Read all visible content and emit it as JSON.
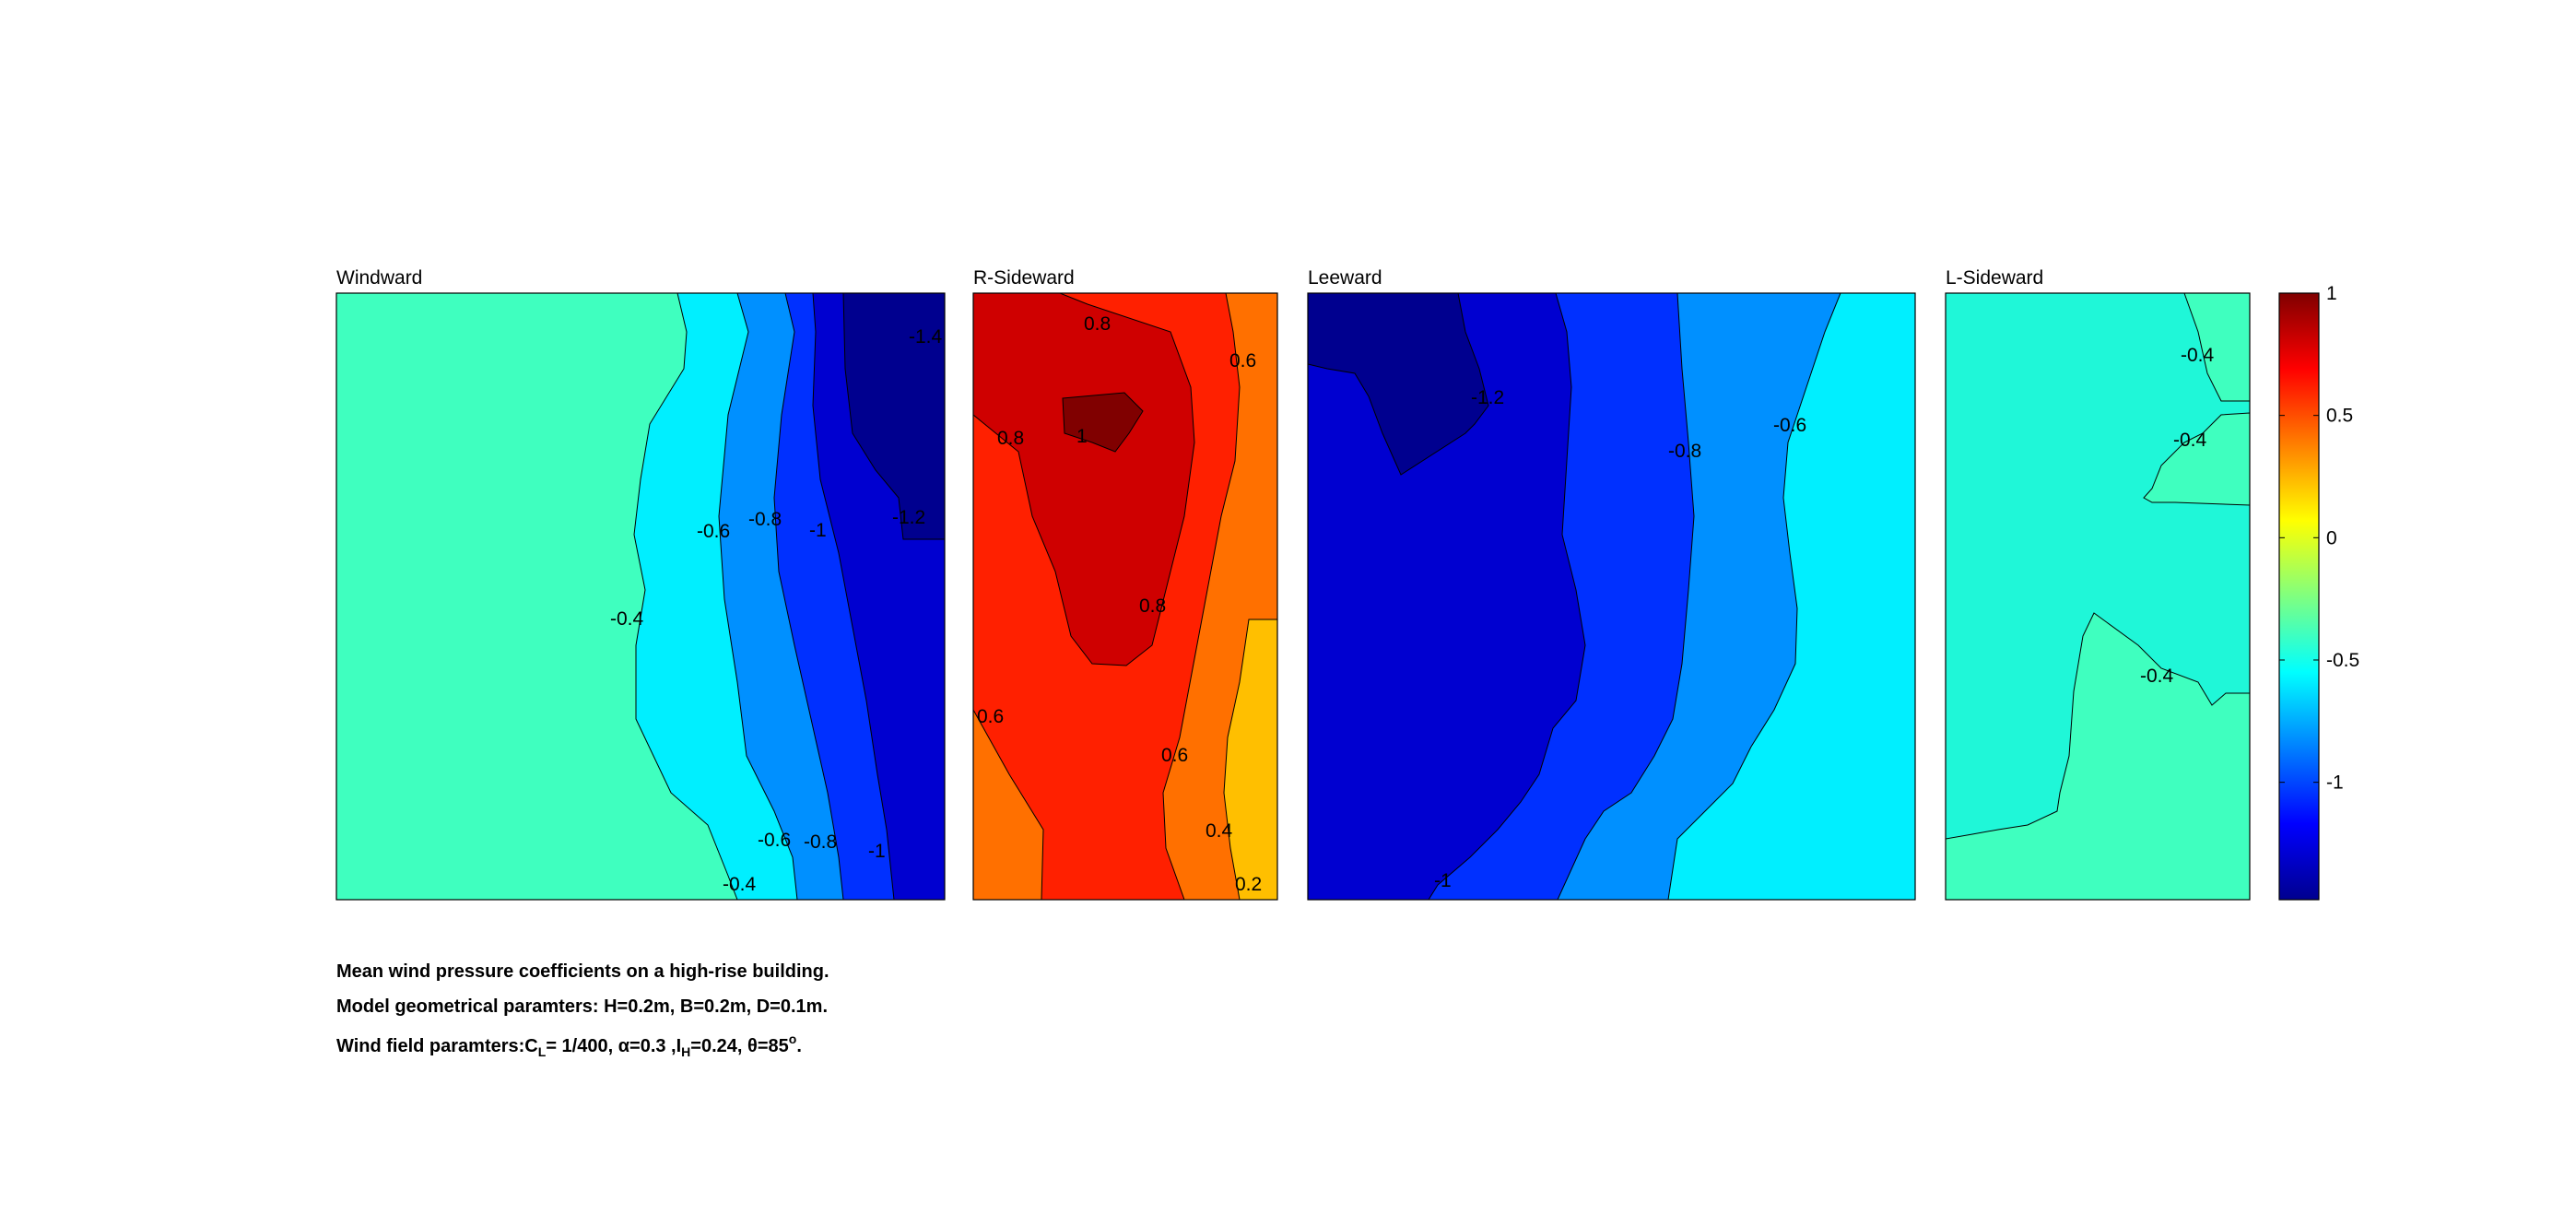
{
  "chart_data": [
    {
      "type": "contour",
      "title": "Windward",
      "label_ticks": [
        -1.4,
        -1.2,
        -1,
        -0.8,
        -0.6,
        -0.4
      ],
      "contour_labels": [
        "-1.4",
        "-1.2",
        "-1",
        "-0.8",
        "-0.6",
        "-0.4",
        "-0.8",
        "-0.6",
        "-1",
        "-0.4"
      ],
      "range": [
        -1.5,
        -0.4
      ],
      "note": "Cp decreases from about -0.4 on the left side to about -1.4 at the top-right corner"
    },
    {
      "type": "contour",
      "title": "R-Sideward",
      "contour_labels": [
        "0.8",
        "0.8",
        "1",
        "0.6",
        "0.8",
        "0.6",
        "0.6",
        "0.4",
        "0.2"
      ],
      "range": [
        0.2,
        1.0
      ],
      "note": "Positive Cp, peak about 1 near upper-left; lowest about 0.2 near bottom-right"
    },
    {
      "type": "contour",
      "title": "Leeward",
      "contour_labels": [
        "-1.2",
        "-0.8",
        "-0.6",
        "-1"
      ],
      "range": [
        -1.2,
        -0.6
      ],
      "note": "Cp about -1.2 at upper-left, rising to about -0.6 on the right side"
    },
    {
      "type": "contour",
      "title": "L-Sideward",
      "contour_labels": [
        "-0.4",
        "-0.4",
        "-0.4"
      ],
      "range": [
        -0.6,
        -0.4
      ],
      "note": "Nearly uniform Cp between about -0.6 and -0.4"
    }
  ],
  "colorbar": {
    "ticks": [
      "1",
      "0.5",
      "0",
      "-0.5",
      "-1"
    ],
    "tick_values": [
      1,
      0.5,
      0,
      -0.5,
      -1
    ],
    "min": -1.48,
    "max": 1.0,
    "colormap": "jet"
  },
  "captions": {
    "line1": "Mean wind pressure coefficients on a high-rise building.",
    "line2": "Model geometrical paramters: H=0.2m, B=0.2m, D=0.1m.",
    "line3_a": "Wind field paramters:C",
    "line3_a_sub": "L",
    "line3_b": "= 1/400, ",
    "line3_alpha": "α",
    "line3_c": "=0.3 ,I",
    "line3_c_sub": "H",
    "line3_d": "=0.24, ",
    "line3_theta": "θ",
    "line3_e": "=85",
    "line3_e_sup": "o",
    "line3_f": "."
  },
  "colors": {
    "c_m14": "#00008f",
    "c_m12": "#0000d0",
    "c_m10": "#0030ff",
    "c_m08": "#0090ff",
    "c_m06": "#00efff",
    "c_m04": "#3fffbf",
    "c_p02": "#ffbf00",
    "c_p04": "#ff7000",
    "c_p06": "#ff2000",
    "c_p08": "#cf0000",
    "c_p10": "#800000"
  }
}
